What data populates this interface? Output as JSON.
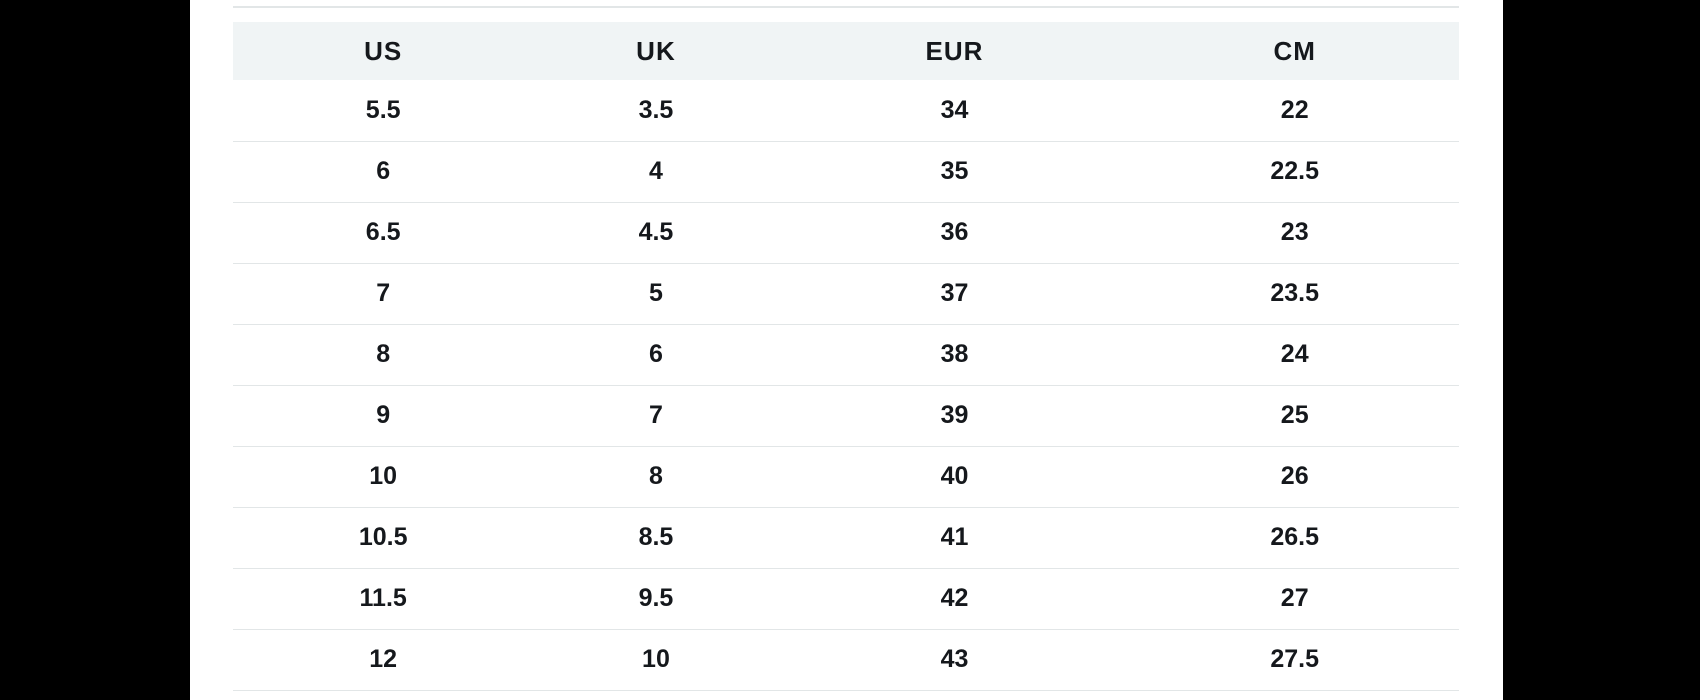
{
  "window": {
    "letterbox_color": "#000000",
    "page_background": "#ffffff"
  },
  "size_chart": {
    "columns": [
      "US",
      "UK",
      "EUR",
      "CM"
    ],
    "rows": [
      [
        "5.5",
        "3.5",
        "34",
        "22"
      ],
      [
        "6",
        "4",
        "35",
        "22.5"
      ],
      [
        "6.5",
        "4.5",
        "36",
        "23"
      ],
      [
        "7",
        "5",
        "37",
        "23.5"
      ],
      [
        "8",
        "6",
        "38",
        "24"
      ],
      [
        "9",
        "7",
        "39",
        "25"
      ],
      [
        "10",
        "8",
        "40",
        "26"
      ],
      [
        "10.5",
        "8.5",
        "41",
        "26.5"
      ],
      [
        "11.5",
        "9.5",
        "42",
        "27"
      ],
      [
        "12",
        "10",
        "43",
        "27.5"
      ]
    ],
    "header_background": "#f0f4f5",
    "row_divider_color": "#e2e6e7",
    "text_color": "#15181c"
  }
}
